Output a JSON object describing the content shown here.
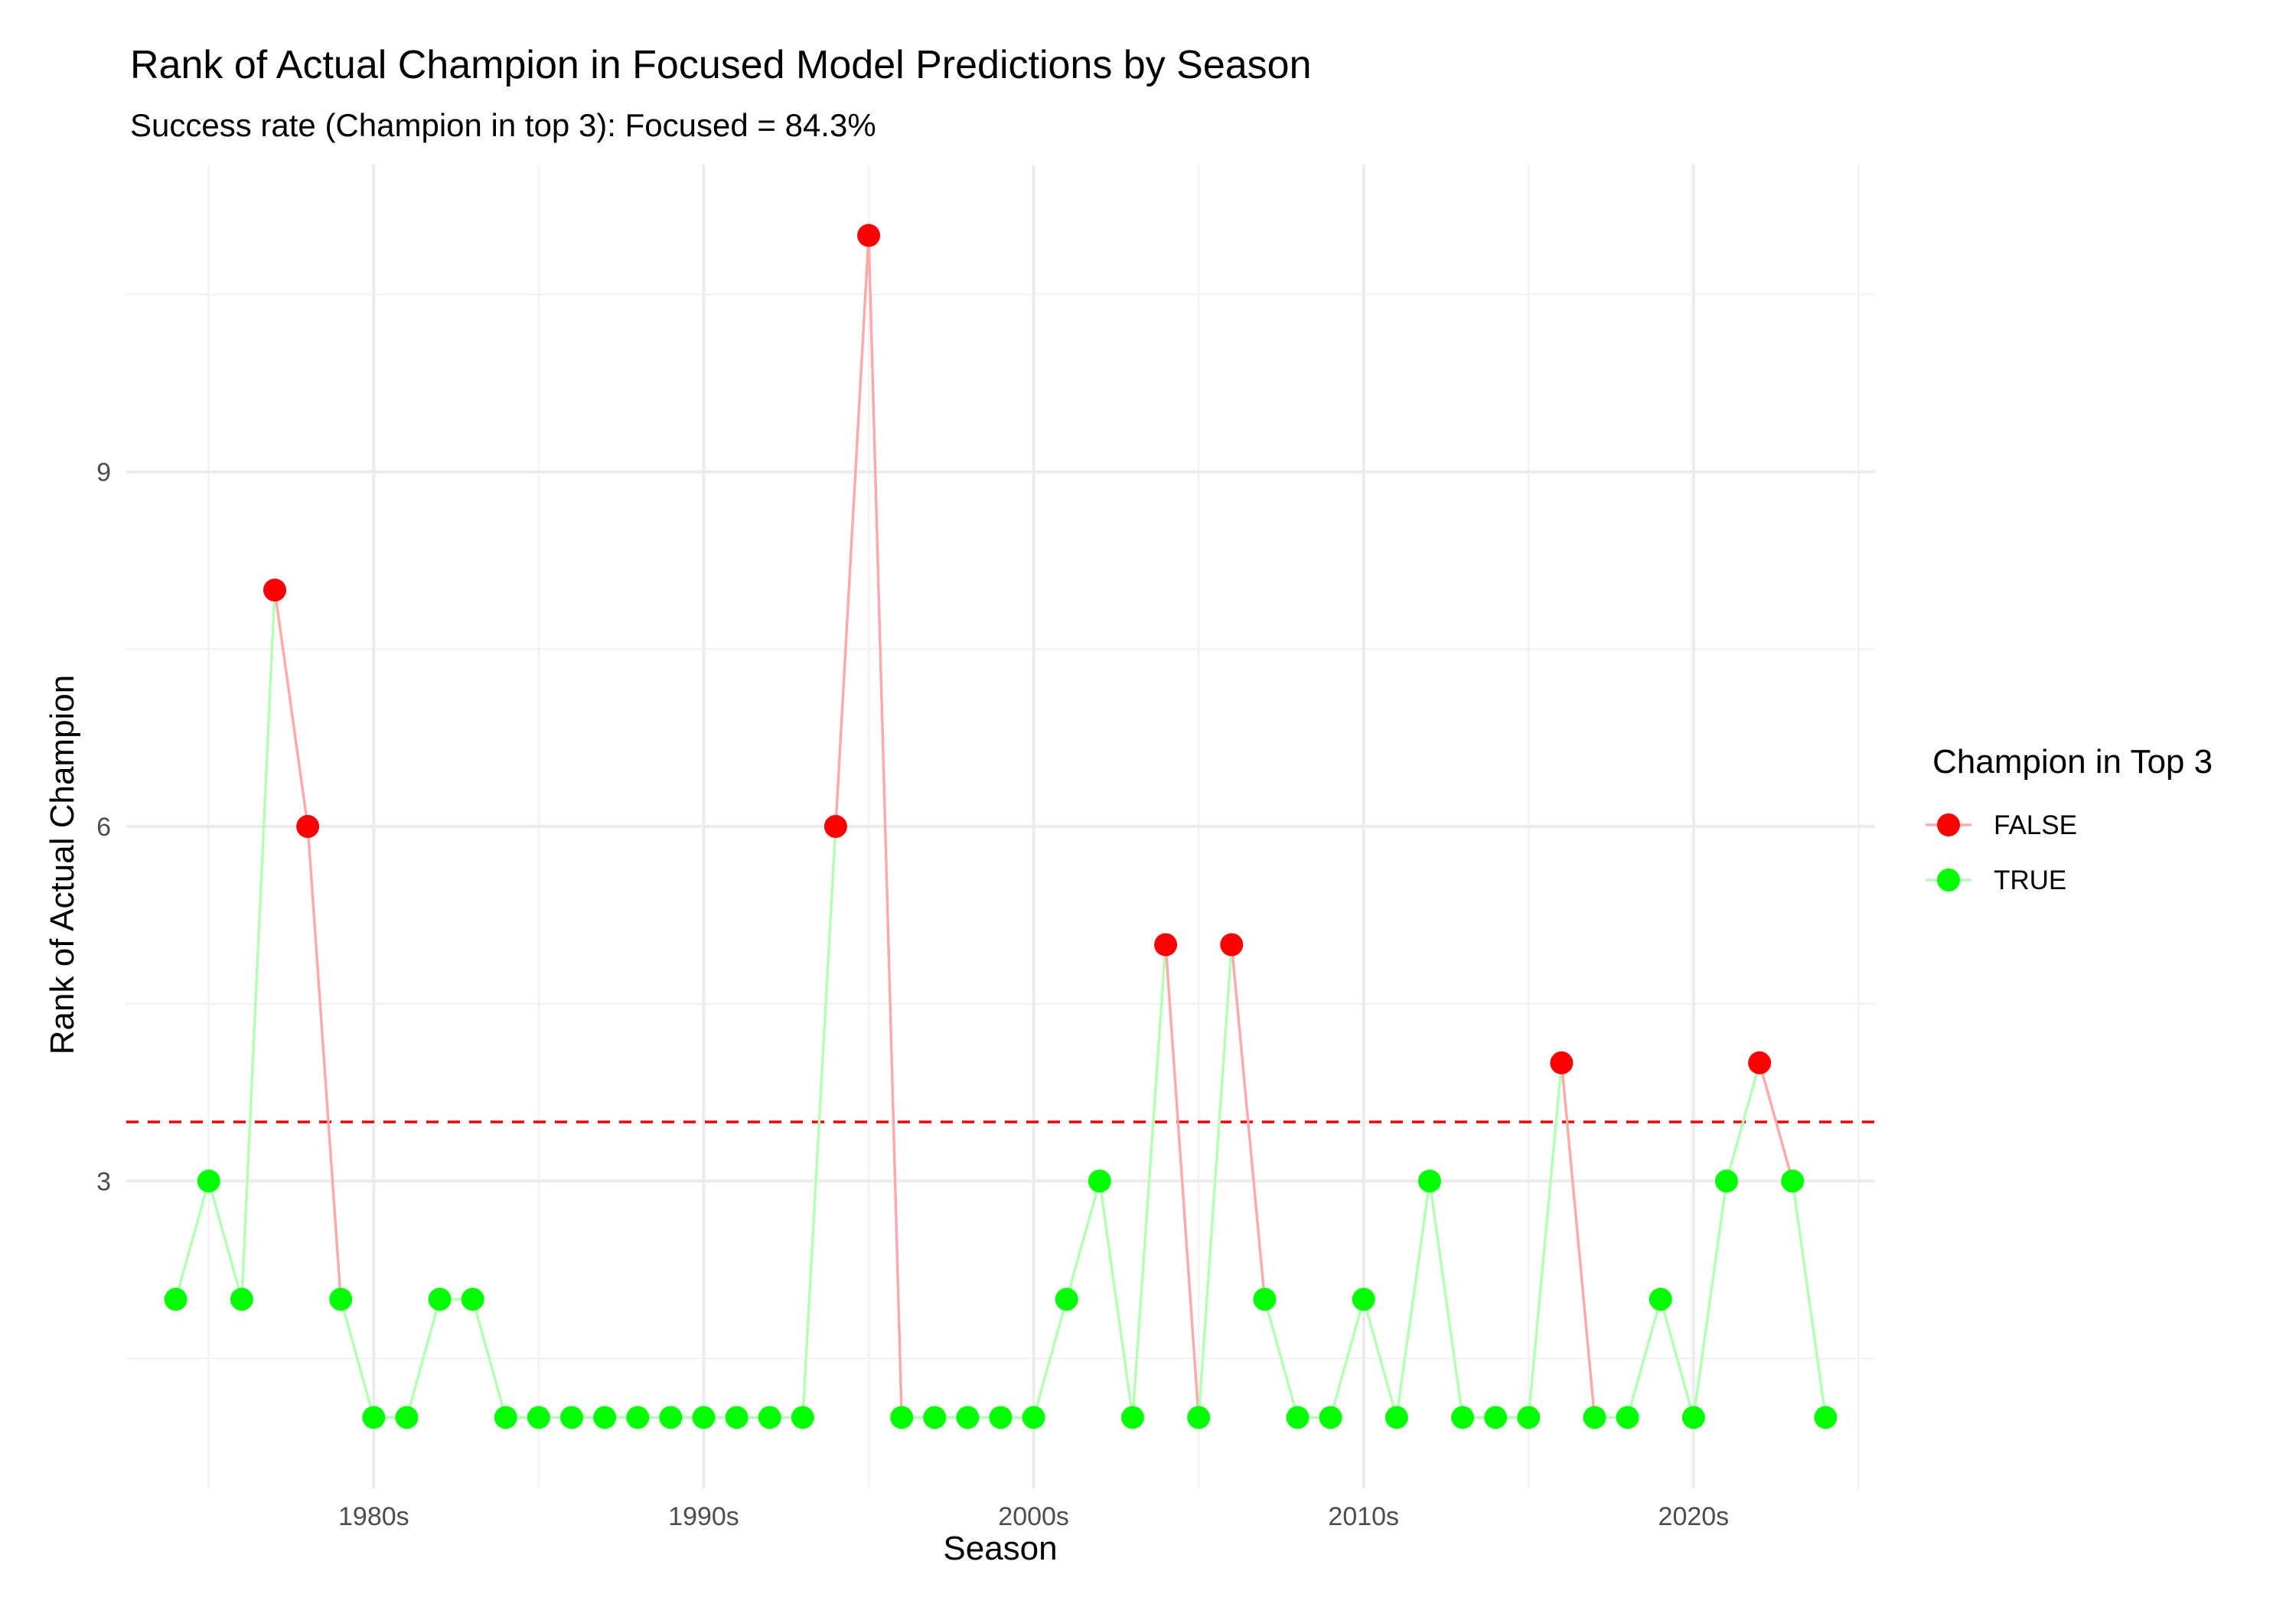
{
  "chart_data": {
    "type": "line",
    "title": "Rank of Actual Champion in Focused Model Predictions by Season",
    "subtitle": "Success rate (Champion in top 3): Focused = 84.3%",
    "xlabel": "Season",
    "ylabel": "Rank of Actual Champion",
    "xlim": [
      1972.5,
      2025.5
    ],
    "ylim": [
      0.4,
      11.6
    ],
    "x_ticks": [
      1980,
      1990,
      2000,
      2010,
      2020
    ],
    "x_tick_labels": [
      "1980s",
      "1990s",
      "2000s",
      "2010s",
      "2020s"
    ],
    "y_ticks": [
      3,
      6,
      9
    ],
    "y_tick_labels": [
      "3",
      "6",
      "9"
    ],
    "grid": true,
    "reference_line": {
      "y": 3.5,
      "color": "#ff0000",
      "style": "dashed"
    },
    "legend": {
      "title": "Champion in Top 3",
      "position": "right",
      "entries": [
        {
          "label": "FALSE",
          "color": "#ff0000"
        },
        {
          "label": "TRUE",
          "color": "#00ff00"
        }
      ]
    },
    "colors": {
      "FALSE": "#ff0000",
      "TRUE": "#00ff00",
      "line_FALSE": "#ffaaaa",
      "line_TRUE": "#b3ffb3"
    },
    "x": [
      1974,
      1975,
      1976,
      1977,
      1978,
      1979,
      1980,
      1981,
      1982,
      1983,
      1984,
      1985,
      1986,
      1987,
      1988,
      1989,
      1990,
      1991,
      1992,
      1993,
      1994,
      1995,
      1996,
      1997,
      1998,
      1999,
      2000,
      2001,
      2002,
      2003,
      2004,
      2005,
      2006,
      2007,
      2008,
      2009,
      2010,
      2011,
      2012,
      2013,
      2014,
      2015,
      2016,
      2017,
      2018,
      2019,
      2020,
      2021,
      2022,
      2023,
      2024
    ],
    "y": [
      2,
      3,
      2,
      8,
      6,
      2,
      1,
      1,
      2,
      2,
      1,
      1,
      1,
      1,
      1,
      1,
      1,
      1,
      1,
      1,
      6,
      11,
      1,
      1,
      1,
      1,
      1,
      2,
      3,
      1,
      5,
      1,
      5,
      2,
      1,
      1,
      2,
      1,
      3,
      1,
      1,
      1,
      4,
      1,
      1,
      2,
      1,
      3,
      4,
      3,
      1
    ]
  }
}
